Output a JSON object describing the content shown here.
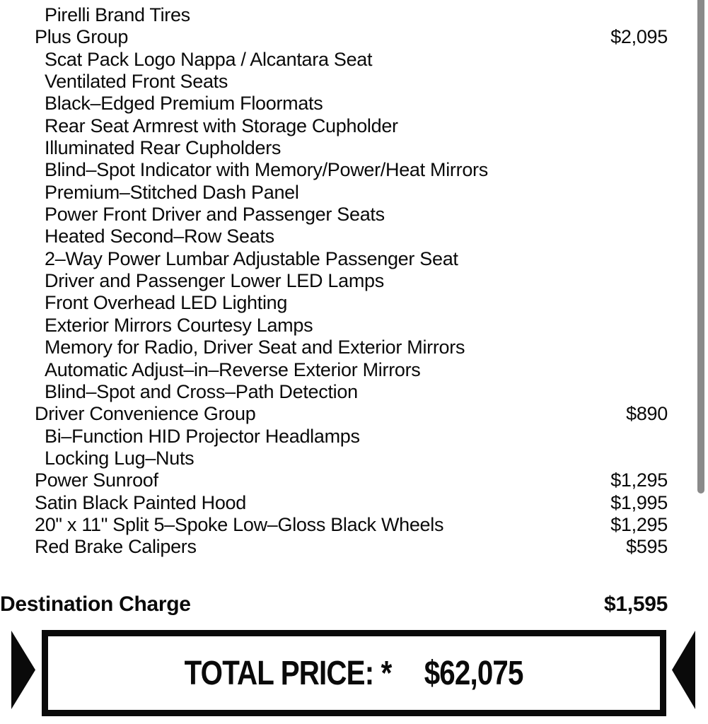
{
  "options_list": {
    "items": [
      {
        "label": "Pirelli Brand Tires",
        "indent": 2,
        "price": ""
      },
      {
        "label": "Plus Group",
        "indent": 1,
        "price": "$2,095"
      },
      {
        "label": "Scat Pack Logo Nappa / Alcantara Seat",
        "indent": 2,
        "price": ""
      },
      {
        "label": "Ventilated Front Seats",
        "indent": 2,
        "price": ""
      },
      {
        "label": "Black–Edged Premium Floormats",
        "indent": 2,
        "price": ""
      },
      {
        "label": "Rear Seat Armrest with Storage Cupholder",
        "indent": 2,
        "price": ""
      },
      {
        "label": "Illuminated Rear Cupholders",
        "indent": 2,
        "price": ""
      },
      {
        "label": "Blind–Spot Indicator with Memory/Power/Heat Mirrors",
        "indent": 2,
        "price": ""
      },
      {
        "label": "Premium–Stitched Dash Panel",
        "indent": 2,
        "price": ""
      },
      {
        "label": "Power Front Driver and Passenger Seats",
        "indent": 2,
        "price": ""
      },
      {
        "label": "Heated Second–Row Seats",
        "indent": 2,
        "price": ""
      },
      {
        "label": "2–Way Power Lumbar Adjustable Passenger Seat",
        "indent": 2,
        "price": ""
      },
      {
        "label": "Driver and Passenger Lower LED Lamps",
        "indent": 2,
        "price": ""
      },
      {
        "label": "Front Overhead LED Lighting",
        "indent": 2,
        "price": ""
      },
      {
        "label": "Exterior Mirrors Courtesy Lamps",
        "indent": 2,
        "price": ""
      },
      {
        "label": "Memory for Radio, Driver Seat and Exterior Mirrors",
        "indent": 2,
        "price": ""
      },
      {
        "label": "Automatic Adjust–in–Reverse Exterior Mirrors",
        "indent": 2,
        "price": ""
      },
      {
        "label": "Blind–Spot and Cross–Path Detection",
        "indent": 2,
        "price": ""
      },
      {
        "label": "Driver Convenience Group",
        "indent": 1,
        "price": "$890"
      },
      {
        "label": "Bi–Function HID Projector Headlamps",
        "indent": 2,
        "price": ""
      },
      {
        "label": "Locking Lug–Nuts",
        "indent": 2,
        "price": ""
      },
      {
        "label": "Power Sunroof",
        "indent": 1,
        "price": "$1,295"
      },
      {
        "label": "Satin Black Painted Hood",
        "indent": 1,
        "price": "$1,995"
      },
      {
        "label": "20\" x 11\" Split 5–Spoke Low–Gloss Black Wheels",
        "indent": 1,
        "price": "$1,295"
      },
      {
        "label": "Red Brake Calipers",
        "indent": 1,
        "price": "$595"
      }
    ]
  },
  "destination_charge": {
    "label": "Destination Charge",
    "price": "$1,595"
  },
  "total": {
    "label": "TOTAL PRICE: *",
    "price": "$62,075"
  },
  "colors": {
    "text": "#0a0a0a",
    "box_border": "#0a0a0a",
    "scrollbar_thumb": "#8a8a8a",
    "background": "#ffffff"
  }
}
